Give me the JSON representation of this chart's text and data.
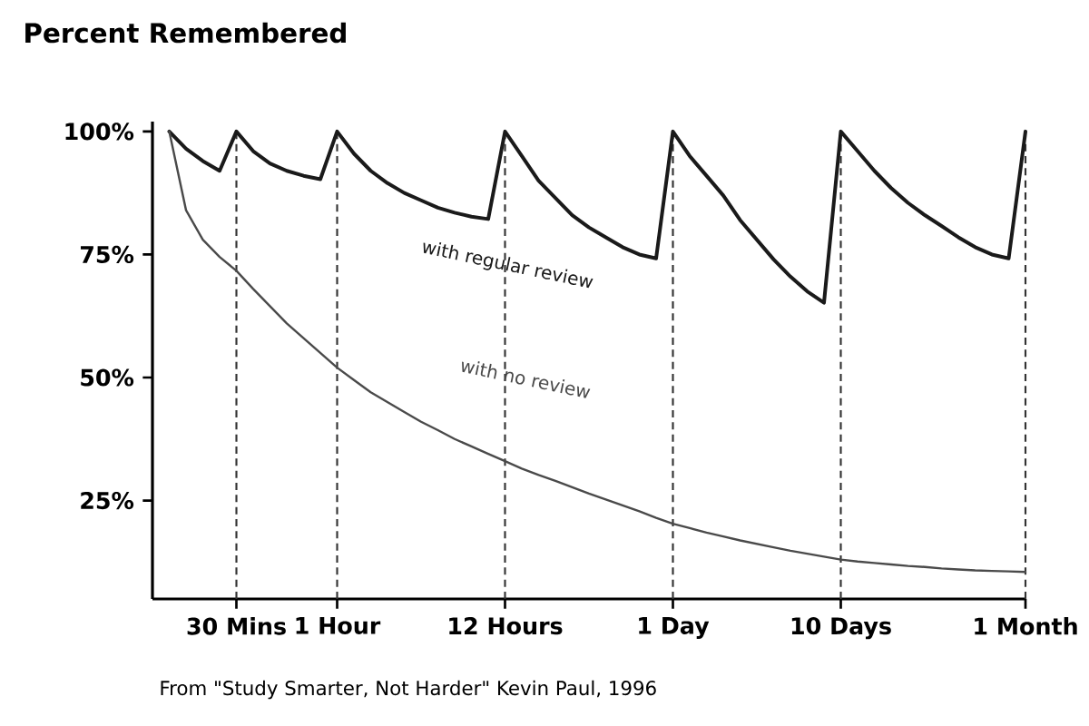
{
  "chart_data": {
    "type": "line",
    "ylabel": "Percent Remembered",
    "categories": [
      null,
      null,
      null,
      null,
      "30 Mins",
      null,
      null,
      null,
      null,
      null,
      "1 Hour",
      null,
      null,
      null,
      null,
      null,
      null,
      null,
      null,
      null,
      "12 Hours",
      null,
      null,
      null,
      null,
      null,
      null,
      null,
      null,
      null,
      "1 Day",
      null,
      null,
      null,
      null,
      null,
      null,
      null,
      null,
      null,
      "10 Days",
      null,
      null,
      null,
      null,
      null,
      null,
      null,
      null,
      null,
      null,
      "1 Month"
    ],
    "ylim": [
      5,
      102
    ],
    "yticks": [
      {
        "value": 25,
        "label": "25%"
      },
      {
        "value": 50,
        "label": "50%"
      },
      {
        "value": 75,
        "label": "75%"
      },
      {
        "value": 100,
        "label": "100%"
      }
    ],
    "grid": "x",
    "series": [
      {
        "name": "with regular review",
        "color": "#1a1a1a",
        "values": [
          100,
          96.5,
          94,
          92,
          100,
          96,
          93.5,
          92,
          91,
          90.3,
          100,
          95.5,
          92,
          89.5,
          87.5,
          86,
          84.5,
          83.5,
          82.7,
          82.2,
          100,
          95,
          90,
          86.5,
          83,
          80.5,
          78.5,
          76.5,
          75,
          74.2,
          100,
          95,
          91,
          87,
          82,
          78,
          74,
          70.5,
          67.5,
          65.2,
          100,
          96,
          92,
          88.5,
          85.5,
          83,
          80.8,
          78.5,
          76.5,
          75,
          74.2,
          100
        ]
      },
      {
        "name": "with no review",
        "color": "#4a4a4a",
        "values": [
          100,
          84,
          78,
          74.5,
          71.7,
          68,
          64.5,
          61,
          58,
          55,
          52,
          49.5,
          47,
          45,
          43,
          41,
          39.3,
          37.5,
          36,
          34.5,
          33,
          31.5,
          30.2,
          29,
          27.7,
          26.4,
          25.2,
          24,
          22.8,
          21.5,
          20.3,
          19.4,
          18.5,
          17.7,
          16.9,
          16.2,
          15.5,
          14.8,
          14.2,
          13.6,
          13,
          12.6,
          12.3,
          12,
          11.7,
          11.5,
          11.2,
          11,
          10.8,
          10.7,
          10.6,
          10.5
        ]
      }
    ],
    "annotations": [
      "From \"Study Smarter, Not Harder\" Kevin Paul, 1996"
    ]
  }
}
